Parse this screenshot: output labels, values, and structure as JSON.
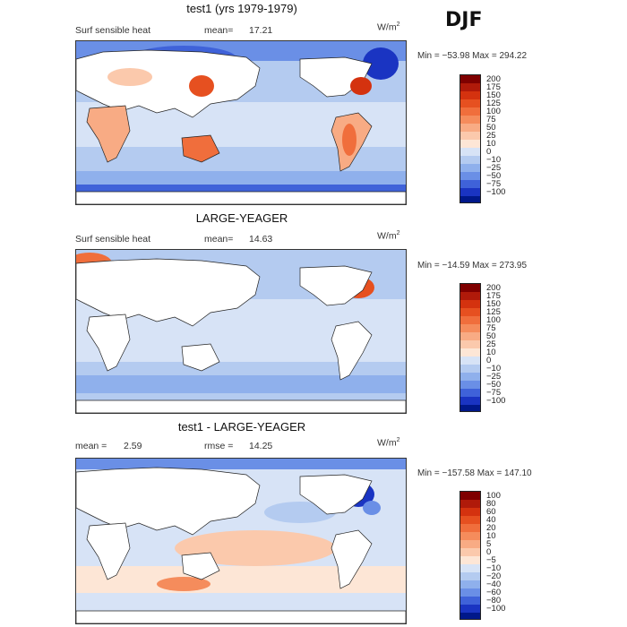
{
  "season": "DJF",
  "colors": {
    "land": "#ffffff",
    "coast": "#222222"
  },
  "panels": [
    {
      "title": "test1 (yrs 1979-1979)",
      "left_label": "Surf sensible heat",
      "stat_label": "mean=",
      "stat_value": "17.21",
      "stat2_label": "",
      "stat2_value": "",
      "units": "W/m",
      "units_sup": "2",
      "minmax": "Min = −53.98 Max = 294.22",
      "colorbar": {
        "labels": [
          "200",
          "175",
          "150",
          "125",
          "100",
          "75",
          "50",
          "25",
          "10",
          "0",
          "−10",
          "−25",
          "−50",
          "−75",
          "−100"
        ],
        "colors": [
          "#7f0000",
          "#b01a0a",
          "#d4320f",
          "#e65020",
          "#f06e3c",
          "#f58c5c",
          "#f8ab84",
          "#fbc9ac",
          "#fde6d6",
          "#d7e3f6",
          "#b4cbf0",
          "#8fb0ec",
          "#6a8fe6",
          "#3f62d9",
          "#1a34c2",
          "#00188a"
        ]
      }
    },
    {
      "title": "LARGE-YEAGER",
      "left_label": "Surf sensible heat",
      "stat_label": "mean=",
      "stat_value": "14.63",
      "stat2_label": "",
      "stat2_value": "",
      "units": "W/m",
      "units_sup": "2",
      "minmax": "Min = −14.59 Max = 273.95",
      "colorbar": {
        "labels": [
          "200",
          "175",
          "150",
          "125",
          "100",
          "75",
          "50",
          "25",
          "10",
          "0",
          "−10",
          "−25",
          "−50",
          "−75",
          "−100"
        ],
        "colors": [
          "#7f0000",
          "#b01a0a",
          "#d4320f",
          "#e65020",
          "#f06e3c",
          "#f58c5c",
          "#f8ab84",
          "#fbc9ac",
          "#fde6d6",
          "#d7e3f6",
          "#b4cbf0",
          "#8fb0ec",
          "#6a8fe6",
          "#3f62d9",
          "#1a34c2",
          "#00188a"
        ]
      }
    },
    {
      "title": "test1 - LARGE-YEAGER",
      "left_label": "",
      "stat_label": "mean =",
      "stat_value": "2.59",
      "stat2_label": "rmse =",
      "stat2_value": "14.25",
      "units": "W/m",
      "units_sup": "2",
      "minmax": "Min = −157.58 Max = 147.10",
      "colorbar": {
        "labels": [
          "100",
          "80",
          "60",
          "40",
          "20",
          "10",
          "5",
          "0",
          "−5",
          "−10",
          "−20",
          "−40",
          "−60",
          "−80",
          "−100"
        ],
        "colors": [
          "#7f0000",
          "#b01a0a",
          "#d4320f",
          "#e65020",
          "#f06e3c",
          "#f58c5c",
          "#f8ab84",
          "#fbc9ac",
          "#fde6d6",
          "#d7e3f6",
          "#b4cbf0",
          "#8fb0ec",
          "#6a8fe6",
          "#3f62d9",
          "#1a34c2",
          "#00188a"
        ]
      }
    }
  ]
}
